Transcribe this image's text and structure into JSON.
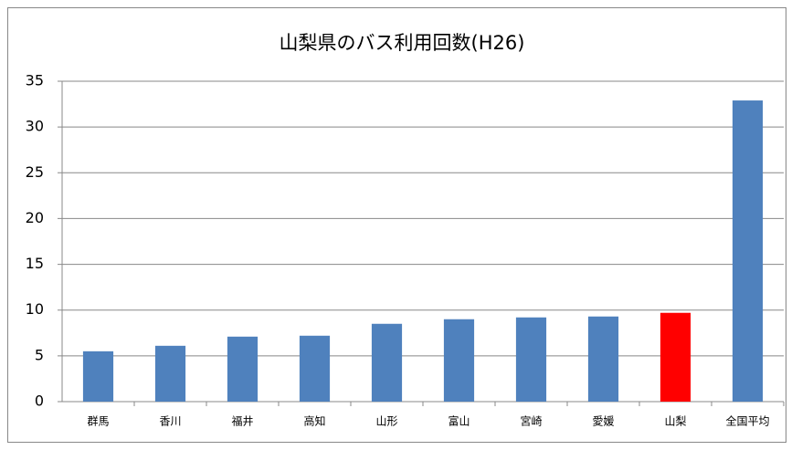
{
  "chart_data": {
    "type": "bar",
    "title": "山梨県のバス利用回数(H26)",
    "categories": [
      "群馬",
      "香川",
      "福井",
      "高知",
      "山形",
      "富山",
      "宮崎",
      "愛媛",
      "山梨",
      "全国平均"
    ],
    "values": [
      5.5,
      6.1,
      7.1,
      7.2,
      8.5,
      9.0,
      9.2,
      9.3,
      9.7,
      32.9
    ],
    "colors": [
      "#4f81bd",
      "#4f81bd",
      "#4f81bd",
      "#4f81bd",
      "#4f81bd",
      "#4f81bd",
      "#4f81bd",
      "#4f81bd",
      "#ff0000",
      "#4f81bd"
    ],
    "ylim": [
      0,
      35
    ],
    "yticks": [
      0,
      5,
      10,
      15,
      20,
      25,
      30,
      35
    ],
    "grid": true
  }
}
